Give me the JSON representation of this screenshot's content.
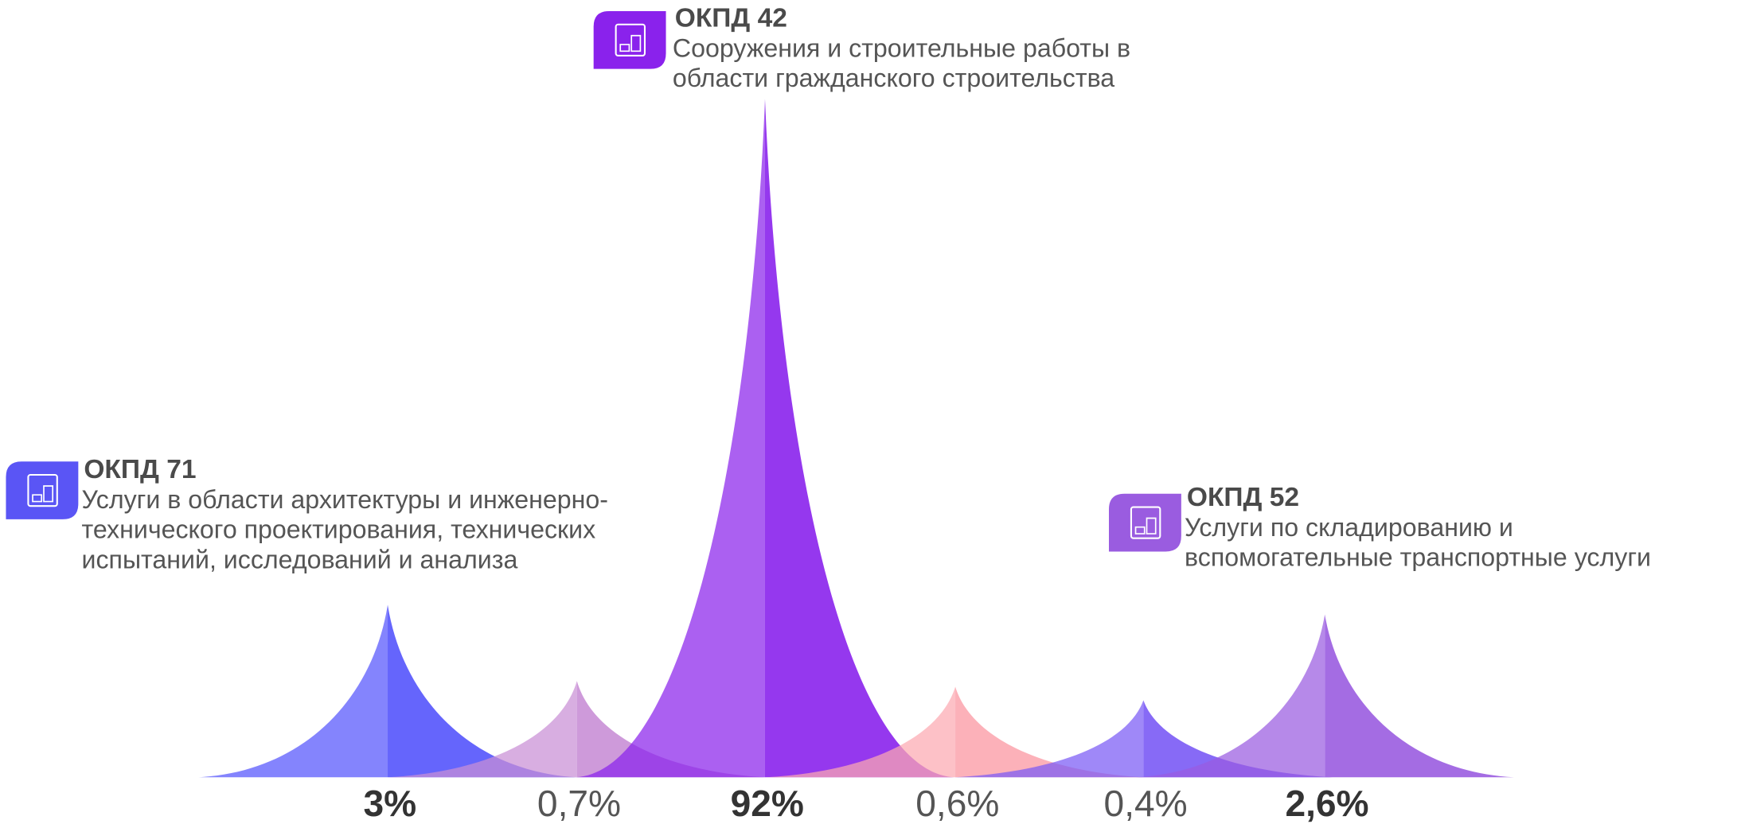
{
  "chart_data": {
    "type": "peak",
    "values": [
      3,
      0.7,
      92,
      0.6,
      0.4,
      2.6
    ],
    "value_labels": [
      "3%",
      "0,7%",
      "92%",
      "0,6%",
      "0,4%",
      "2,6%"
    ],
    "emphasized": [
      true,
      false,
      true,
      false,
      false,
      true
    ],
    "colors": [
      "#5454fc",
      "#c98fd6",
      "#8a22ec",
      "#fca9b1",
      "#7a5af5",
      "#9a5ce0"
    ],
    "annotations": [
      {
        "code": "ОКПД 71",
        "color": "#5a55f5",
        "lines": [
          "Услуги в области архитектуры и инженерно-",
          "технического проектирования, технических",
          "испытаний, исследований и анализа"
        ]
      },
      {
        "code": "ОКПД 42",
        "color": "#8a22ec",
        "lines": [
          "Сооружения и строительные работы в",
          "области гражданского строительства"
        ]
      },
      {
        "code": "ОКПД 52",
        "color": "#9a5ce0",
        "lines": [
          "Услуги по складированию и",
          "вспомогательные транспортные услуги"
        ]
      }
    ]
  }
}
